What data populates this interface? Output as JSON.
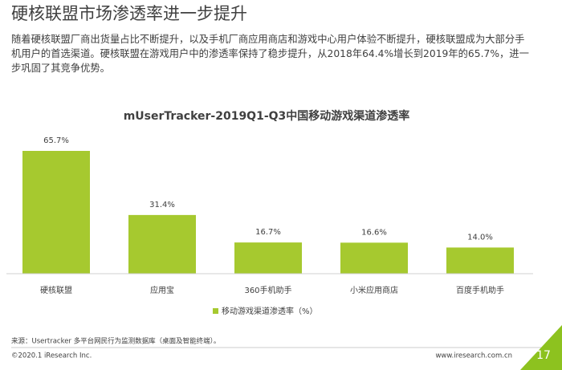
{
  "header": {
    "title": "硬核联盟市场渗透率进一步提升"
  },
  "body": "随着硬核联盟厂商出货量占比不断提升，以及手机厂商应用商店和游戏中心用户体验不断提升，硬核联盟成为大部分手机用户的首选渠道。硬核联盟在游戏用户中的渗透率保持了稳步提升，从2018年64.4%增长到2019年的65.7%，进一步巩固了其竞争优势。",
  "chart_data": {
    "type": "bar",
    "title": "mUserTracker-2019Q1-Q3中国移动游戏渠道渗透率",
    "categories": [
      "硬核联盟",
      "应用宝",
      "360手机助手",
      "小米应用商店",
      "百度手机助手"
    ],
    "series": [
      {
        "name": "移动游戏渠道渗透率（%）",
        "color": "#a6c92f",
        "values": [
          65.7,
          31.4,
          16.7,
          16.6,
          14.0
        ],
        "value_labels": [
          "65.7%",
          "31.4%",
          "16.7%",
          "16.6%",
          "14.0%"
        ]
      }
    ]
  },
  "footer": {
    "source": "来源：Usertracker 多平台网民行为监测数据库（桌面及智能终端）。",
    "copyright": "©2020.1 iResearch Inc.",
    "website": "www.iresearch.com.cn",
    "page": "17"
  }
}
